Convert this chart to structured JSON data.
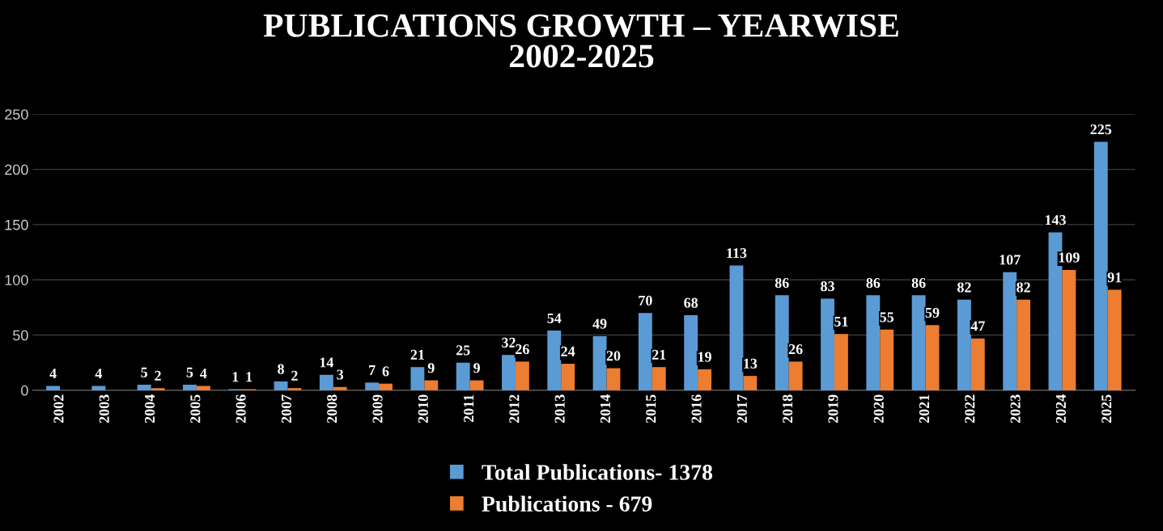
{
  "chart_data": {
    "type": "bar",
    "title": "PUBLICATIONS GROWTH – YEARWISE\n2002-2025",
    "categories": [
      "2002",
      "2003",
      "2004",
      "2005",
      "2006",
      "2007",
      "2008",
      "2009",
      "2010",
      "2011",
      "2012",
      "2013",
      "2014",
      "2015",
      "2016",
      "2017",
      "2018",
      "2019",
      "2020",
      "2021",
      "2022",
      "2023",
      "2024",
      "2025"
    ],
    "series": [
      {
        "name": "Total Publications- 1378",
        "color": "#5b9bd5",
        "values": [
          4,
          4,
          5,
          5,
          1,
          8,
          14,
          7,
          21,
          25,
          32,
          54,
          49,
          70,
          68,
          113,
          86,
          83,
          86,
          86,
          82,
          107,
          143,
          225
        ],
        "value_labels": [
          "4",
          "4",
          "5",
          "5",
          "1",
          "8",
          "14",
          "7",
          "21",
          "25",
          "32",
          "54",
          "49",
          "70",
          "68",
          "113",
          "86",
          "83",
          "86",
          "86",
          "82",
          "107",
          "143",
          "225"
        ]
      },
      {
        "name": "Publications - 679",
        "color": "#ed7d31",
        "values": [
          0,
          0,
          2,
          4,
          1,
          2,
          3,
          6,
          9,
          9,
          26,
          24,
          20,
          21,
          19,
          13,
          26,
          51,
          55,
          59,
          47,
          82,
          109,
          91
        ],
        "value_labels": [
          null,
          null,
          "2",
          "4",
          "1",
          "2",
          "3",
          "6",
          "9",
          "9",
          "26",
          "24",
          "20",
          "21",
          "19",
          "13",
          "26",
          "51",
          "55",
          "59",
          "47",
          "82",
          "109",
          "91"
        ]
      }
    ],
    "ylim": [
      0,
      250
    ],
    "yticks": [
      0,
      50,
      100,
      150,
      200,
      250
    ],
    "grid": "y",
    "legend": "bottom"
  }
}
